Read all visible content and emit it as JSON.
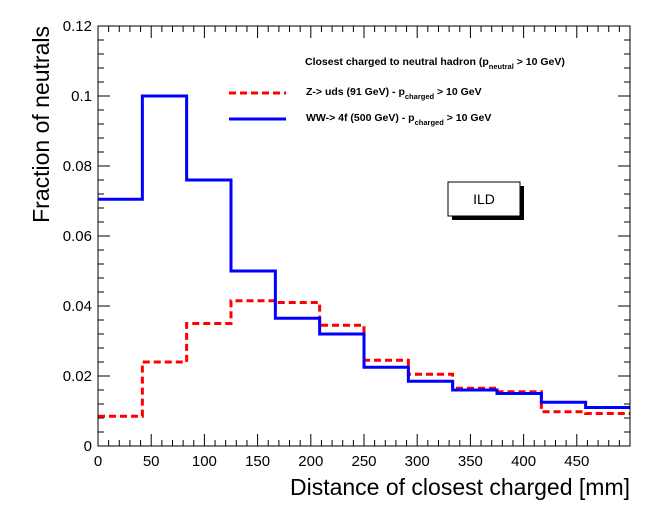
{
  "chart_data": {
    "type": "step-histogram",
    "xlabel": "Distance of closest charged [mm]",
    "ylabel": "Fraction of neutrals",
    "xlim": [
      0,
      500
    ],
    "ylim": [
      0,
      0.12
    ],
    "bin_edges": [
      0,
      41.7,
      83.3,
      125,
      166.7,
      208.3,
      250,
      291.7,
      333.3,
      375,
      416.7,
      458.3,
      500
    ],
    "x_ticks": [
      {
        "value": 0,
        "label": "0"
      },
      {
        "value": 50,
        "label": "50"
      },
      {
        "value": 100,
        "label": "100"
      },
      {
        "value": 150,
        "label": "150"
      },
      {
        "value": 200,
        "label": "200"
      },
      {
        "value": 250,
        "label": "250"
      },
      {
        "value": 300,
        "label": "300"
      },
      {
        "value": 350,
        "label": "350"
      },
      {
        "value": 400,
        "label": "400"
      },
      {
        "value": 450,
        "label": "450"
      }
    ],
    "y_ticks": [
      {
        "value": 0,
        "label": "0"
      },
      {
        "value": 0.02,
        "label": "0.02"
      },
      {
        "value": 0.04,
        "label": "0.04"
      },
      {
        "value": 0.06,
        "label": "0.06"
      },
      {
        "value": 0.08,
        "label": "0.08"
      },
      {
        "value": 0.1,
        "label": "0.1"
      },
      {
        "value": 0.12,
        "label": "0.12"
      }
    ],
    "legend": {
      "header_main": "Closest charged to neutral hadron (p",
      "header_sub": "neutral",
      "header_tail": " > 10 GeV)"
    },
    "series": [
      {
        "name": "Z-> uds (91 GeV)",
        "label_main": "Z-> uds (91 GeV) - p",
        "label_sub": "charged",
        "label_tail": " > 10 GeV",
        "color": "#ff0000",
        "style": "dashed",
        "values": [
          0.0085,
          0.024,
          0.035,
          0.0415,
          0.041,
          0.0345,
          0.0245,
          0.0205,
          0.0165,
          0.0155,
          0.0098,
          0.0093
        ]
      },
      {
        "name": "WW-> 4f (500 GeV)",
        "label_main": "WW-> 4f (500 GeV) - p",
        "label_sub": "charged",
        "label_tail": " > 10 GeV",
        "color": "#0000ff",
        "style": "solid",
        "values": [
          0.0705,
          0.1,
          0.076,
          0.05,
          0.0365,
          0.032,
          0.0225,
          0.0185,
          0.016,
          0.015,
          0.0125,
          0.011
        ]
      }
    ],
    "annotation": "ILD"
  }
}
